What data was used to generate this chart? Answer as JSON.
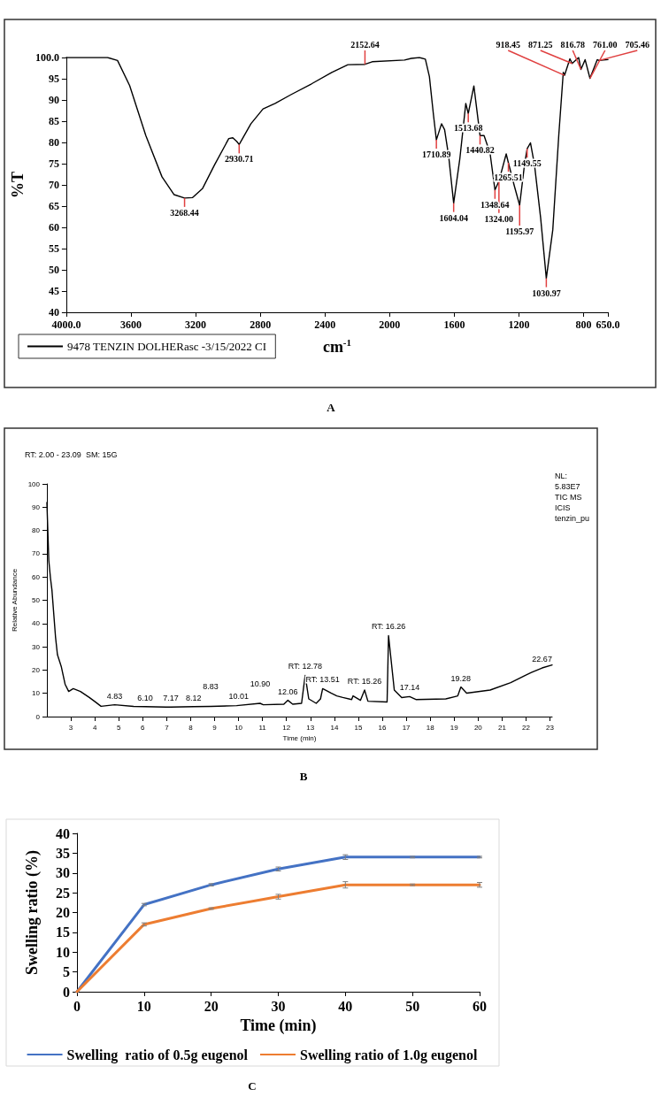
{
  "chart_data": [
    {
      "type": "line",
      "xlabel": "cm$^{-1}$",
      "ylabel": "%T",
      "xlim": [
        4000,
        650
      ],
      "xticks": [
        {
          "value": 4000,
          "label": "4000.0"
        },
        3600,
        3200,
        2800,
        2400,
        2000,
        1600,
        1200,
        800,
        {
          "value": 650,
          "label": "650.0"
        }
      ],
      "ylim": [
        40,
        100
      ],
      "yticks": [
        {
          "value": 100,
          "label": "100.0"
        },
        95,
        90,
        85,
        80,
        75,
        70,
        65,
        60,
        55,
        50,
        45,
        40
      ],
      "legend": "bottom left",
      "marker": "none",
      "series": [
        {
          "name": "9478 TENZIN DOLHERasc -3/15/2022 CI",
          "color": "#000000",
          "x": [
            4000,
            3745,
            3683,
            3608,
            3508,
            3408,
            3333,
            3268.44,
            3220,
            3158,
            3083,
            2995,
            2970,
            2945,
            2930.71,
            2858,
            2783,
            2708,
            2608,
            2483,
            2358,
            2258,
            2152.64,
            2108,
            1908,
            1866,
            1816,
            1779,
            1754,
            1729,
            1710.89,
            1679,
            1660,
            1635,
            1604.04,
            1566,
            1529,
            1513.68,
            1479,
            1440.82,
            1416,
            1379,
            1348.64,
            1324,
            1279,
            1265.51,
            1229,
            1195.97,
            1166,
            1149.55,
            1129,
            1104,
            1066,
            1030.97,
            991,
            954,
            926,
            918.45,
            885,
            871.25,
            831,
            816.78,
            791,
            761,
            716,
            705.46,
            650
          ],
          "values": [
            100,
            100,
            99.3,
            93.4,
            81.6,
            71.9,
            67.7,
            66.9,
            67,
            69.1,
            74.7,
            80.9,
            81.1,
            80.2,
            79.5,
            84.4,
            87.9,
            89.2,
            91.3,
            93.8,
            96.5,
            98.3,
            98.4,
            99,
            99.4,
            99.8,
            100,
            99.6,
            95.5,
            86.5,
            80.6,
            84.4,
            83,
            76.8,
            65.7,
            76.1,
            89.2,
            86.8,
            93.3,
            81.6,
            81.6,
            77.5,
            68.8,
            70.9,
            77.3,
            75.2,
            69.8,
            65.2,
            74.7,
            78.5,
            79.9,
            74.7,
            62.2,
            48,
            59.4,
            81.6,
            96.5,
            95.8,
            99.7,
            98.6,
            100,
            97.2,
            99.5,
            95.1,
            99.5,
            99.3,
            99.5
          ]
        }
      ],
      "annotations": [
        {
          "text": "3268.44",
          "x": 3268.44,
          "y": 66.9
        },
        {
          "text": "2930.71",
          "x": 2930.71,
          "y": 79.5
        },
        {
          "text": "2152.64",
          "x": 2152.64,
          "y": 98.4
        },
        {
          "text": "1710.89",
          "x": 1710.89,
          "y": 80.6
        },
        {
          "text": "1604.04",
          "x": 1604.04,
          "y": 65.7
        },
        {
          "text": "1513.68",
          "x": 1513.68,
          "y": 86.8
        },
        {
          "text": "1440.82",
          "x": 1440.82,
          "y": 81.6
        },
        {
          "text": "1348.64",
          "x": 1348.64,
          "y": 68.8
        },
        {
          "text": "1324.00",
          "x": 1324,
          "y": 70.9
        },
        {
          "text": "1265.51",
          "x": 1265.51,
          "y": 75.2
        },
        {
          "text": "1195.97",
          "x": 1195.97,
          "y": 65.2
        },
        {
          "text": "1149.55",
          "x": 1149.55,
          "y": 78.5
        },
        {
          "text": "1030.97",
          "x": 1030.97,
          "y": 48
        },
        {
          "text": "918.45",
          "x": 918.45,
          "y": 95.8
        },
        {
          "text": "871.25",
          "x": 871.25,
          "y": 98.6
        },
        {
          "text": "816.78",
          "x": 816.78,
          "y": 97.2
        },
        {
          "text": "761.00",
          "x": 761,
          "y": 95.1
        },
        {
          "text": "705.46",
          "x": 705.46,
          "y": 99.3
        },
        "A"
      ]
    },
    {
      "type": "line",
      "title": "RT: 2.00 - 23.09  SM: 15G",
      "xlabel": "Time (min)",
      "ylabel": "Relative Abundance",
      "xlim": [
        2,
        23.09
      ],
      "xticks": [
        3,
        4,
        5,
        6,
        7,
        8,
        9,
        10,
        11,
        12,
        13,
        14,
        15,
        16,
        17,
        18,
        19,
        20,
        21,
        22,
        23
      ],
      "ylim": [
        0,
        100
      ],
      "yticks": [
        0,
        10,
        20,
        30,
        40,
        50,
        60,
        70,
        80,
        90,
        100
      ],
      "marker": "none",
      "series": [
        {
          "color": "#000000",
          "x": [
            2,
            2.08,
            2.15,
            2.21,
            2.36,
            2.44,
            2.6,
            2.76,
            2.91,
            3.1,
            3.4,
            3.77,
            4.02,
            4.26,
            4.83,
            5.62,
            6.1,
            6.97,
            7.17,
            8.12,
            8.83,
            9.92,
            10.01,
            10.9,
            11.03,
            11.89,
            12.06,
            12.26,
            12.63,
            12.78,
            12.93,
            13.24,
            13.42,
            13.51,
            13.86,
            14.1,
            14.35,
            14.72,
            14.78,
            15.09,
            15.26,
            15.4,
            16.2,
            16.26,
            16.5,
            16.81,
            17.14,
            17.42,
            18.65,
            19.15,
            19.28,
            19.52,
            20.5,
            21.36,
            22.22,
            22.67,
            23.09
          ],
          "values": [
            92,
            67,
            59.5,
            54.4,
            34.2,
            26.6,
            21.5,
            13.9,
            10.8,
            12,
            10.8,
            8.2,
            6.3,
            4.4,
            5.1,
            4.4,
            4.3,
            4.1,
            4.1,
            4.3,
            4.4,
            4.7,
            4.8,
            5.7,
            5.1,
            5.3,
            7,
            5.3,
            5.7,
            17.7,
            7.6,
            5.7,
            7.6,
            12,
            10.1,
            8.9,
            8.2,
            7.3,
            8.9,
            7,
            11.4,
            6.6,
            6.3,
            34.8,
            11.4,
            8.2,
            8.6,
            7.3,
            7.6,
            8.9,
            12.7,
            10.1,
            11.4,
            14.6,
            19,
            20.9,
            22.2
          ]
        }
      ],
      "annotations": [
        {
          "text": "4.83",
          "x": 4.83,
          "y": 5.1
        },
        {
          "text": "6.10",
          "x": 6.1,
          "y": 4.3
        },
        {
          "text": "7.17",
          "x": 7.17,
          "y": 4.1
        },
        {
          "text": "8.12",
          "x": 8.12,
          "y": 4.3
        },
        {
          "text": "8.83",
          "x": 8.83,
          "y": 4.4
        },
        {
          "text": "10.01",
          "x": 10.01,
          "y": 4.8
        },
        {
          "text": "10.90",
          "x": 10.9,
          "y": 5.7
        },
        {
          "text": "12.06",
          "x": 12.06,
          "y": 7
        },
        {
          "text": "RT: 12.78",
          "x": 12.78,
          "y": 17.7
        },
        {
          "text": "RT: 13.51",
          "x": 13.51,
          "y": 12
        },
        {
          "text": "RT: 15.26",
          "x": 15.26,
          "y": 11.4
        },
        {
          "text": "RT: 16.26",
          "x": 16.26,
          "y": 34.8
        },
        {
          "text": "17.14",
          "x": 17.14,
          "y": 8.6
        },
        {
          "text": "19.28",
          "x": 19.28,
          "y": 12.7
        },
        {
          "text": "22.67",
          "x": 22.67,
          "y": 20.9
        },
        "NL:\n5.83E7\nTIC MS\nICIS\ntenzin_pu",
        "B"
      ]
    },
    {
      "type": "line",
      "xlabel": "Time (min)",
      "ylabel": "Swelling ratio (%)",
      "x": [
        0,
        10,
        20,
        30,
        40,
        50,
        60
      ],
      "xlim": [
        0,
        60
      ],
      "xticks": [
        0,
        10,
        20,
        30,
        40,
        50,
        60
      ],
      "ylim": [
        0,
        40
      ],
      "yticks": [
        0,
        5,
        10,
        15,
        20,
        25,
        30,
        35,
        40
      ],
      "legend": "bottom",
      "marker": "none",
      "series": [
        {
          "name": "Swelling  ratio of 0.5g eugenol",
          "color": "#4472c4",
          "values": [
            0,
            22,
            27,
            31,
            34,
            34,
            34
          ],
          "errors": [
            null,
            0.3,
            0.3,
            0.5,
            0.6,
            0.2,
            0.2
          ]
        },
        {
          "name": "Swelling ratio of 1.0g eugenol",
          "color": "#ed7d31",
          "values": [
            0,
            17,
            21,
            24,
            27,
            27,
            27
          ],
          "errors": [
            null,
            0.4,
            0.2,
            0.6,
            0.8,
            0.2,
            0.6
          ]
        }
      ],
      "annotations": [
        "C"
      ]
    }
  ]
}
